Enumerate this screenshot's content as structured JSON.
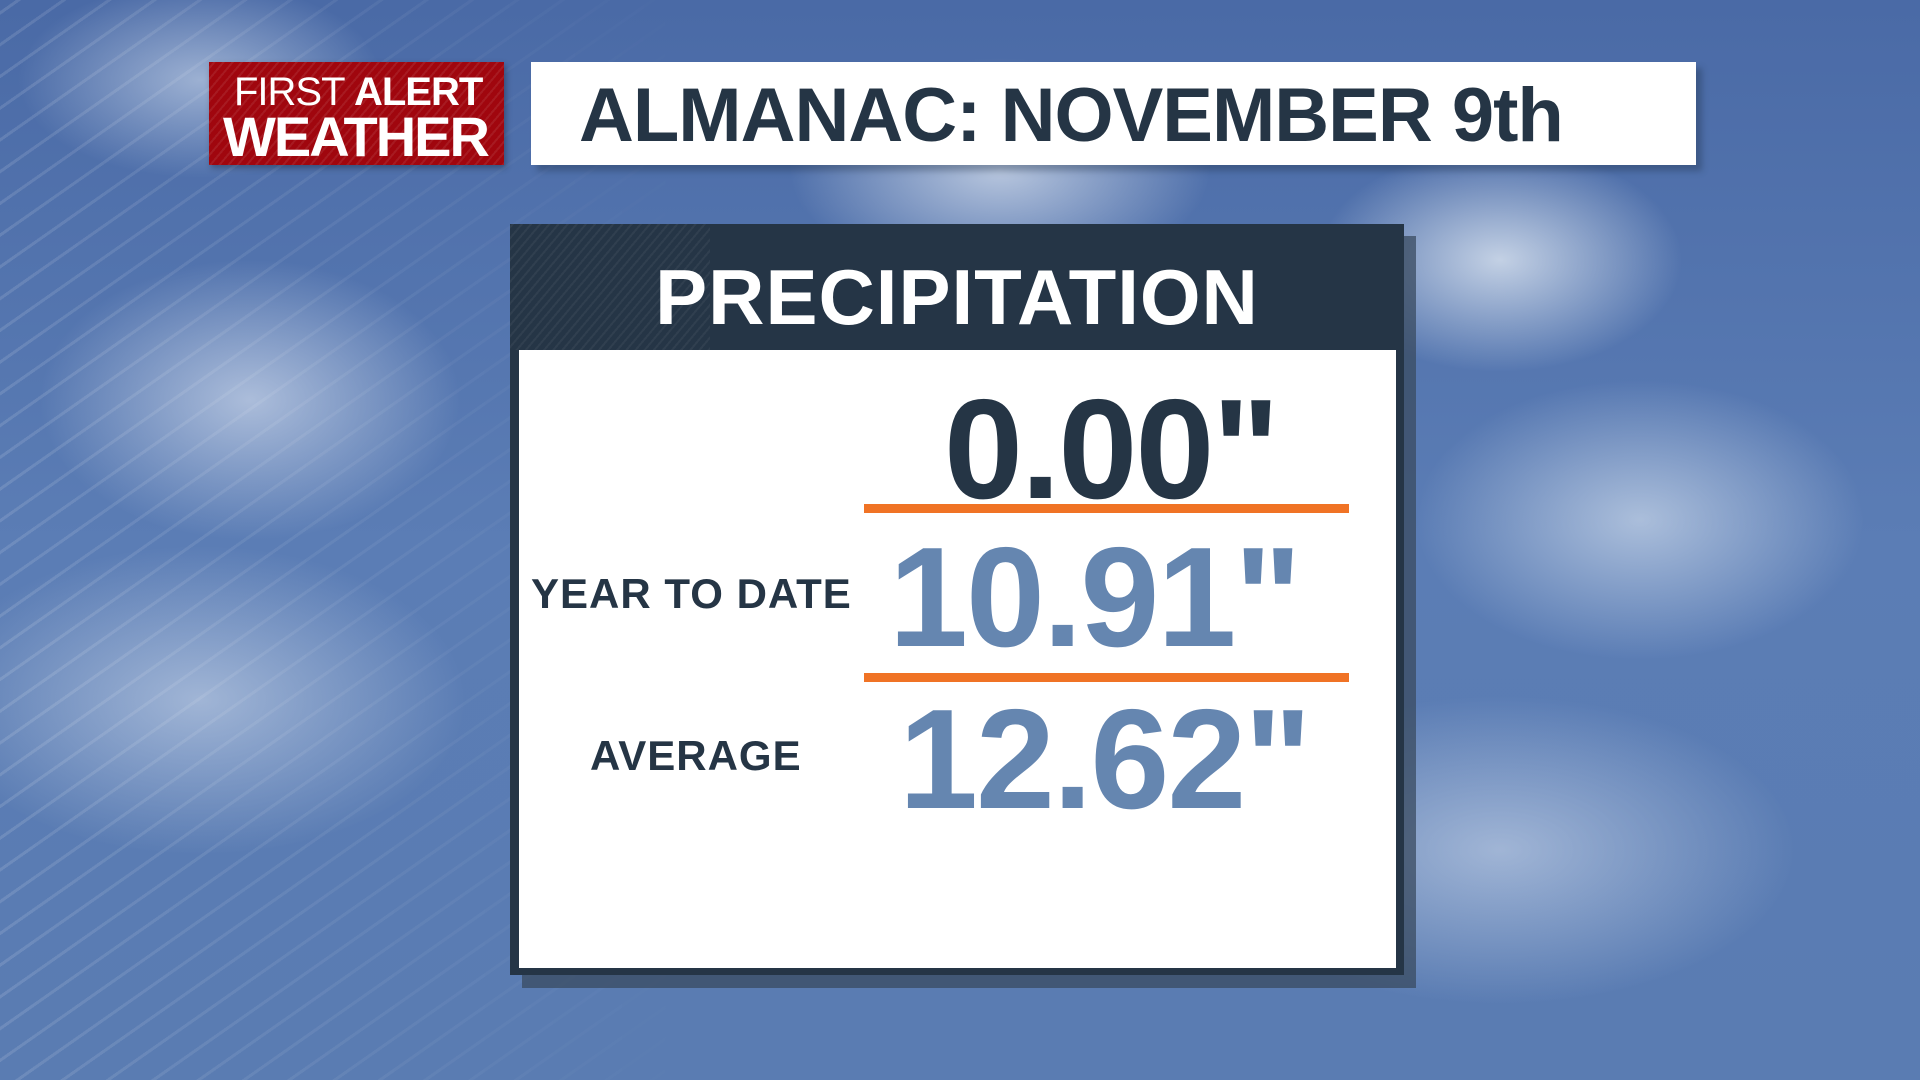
{
  "logo": {
    "line1_light": "FIRST",
    "line1_bold": "ALERT",
    "line2": "WEATHER",
    "color": "#a0060e"
  },
  "header": {
    "title": "ALMANAC: NOVEMBER 9th"
  },
  "panel": {
    "title": "PRECIPITATION",
    "today_value": "0.00\"",
    "year_to_date_label": "YEAR TO DATE",
    "year_to_date_value": "10.91\"",
    "average_label": "AVERAGE",
    "average_value": "12.62\""
  },
  "colors": {
    "dark": "#253545",
    "accent": "#f07325",
    "value_blue": "#6586b0"
  }
}
